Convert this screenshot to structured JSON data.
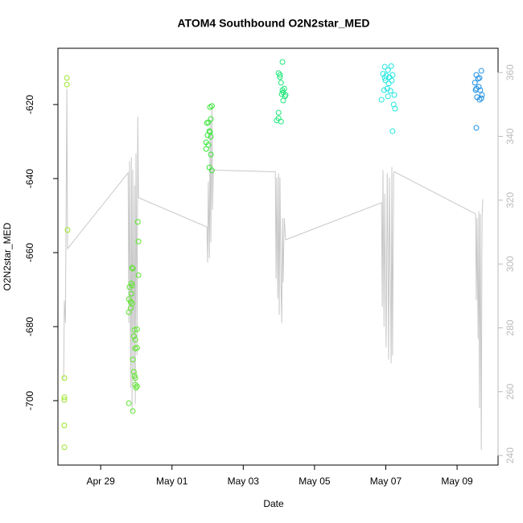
{
  "chart_data": {
    "type": "scatter",
    "title": "ATOM4 Southbound O2N2star_MED",
    "xlabel": "Date",
    "ylabel": "O2N2star_MED",
    "xlim": [
      117.8,
      130.15
    ],
    "xticks": [
      {
        "value": 119,
        "label": "Apr 29"
      },
      {
        "value": 121,
        "label": "May 01"
      },
      {
        "value": 123,
        "label": "May 03"
      },
      {
        "value": 125,
        "label": "May 05"
      },
      {
        "value": 127,
        "label": "May 07"
      },
      {
        "value": 129,
        "label": "May 09"
      }
    ],
    "ylim": [
      -717.4,
      -604.8
    ],
    "yticks": [
      -700,
      -680,
      -660,
      -640,
      -620
    ],
    "y2lim": [
      237.0,
      367.6
    ],
    "y2ticks": [
      240,
      260,
      280,
      300,
      320,
      340,
      360
    ],
    "series": [
      {
        "color": "#9ae62a",
        "x": [
          118.05,
          118.05,
          118.07,
          117.98,
          117.98,
          117.98,
          117.98,
          117.98
        ],
        "values": [
          -612.8,
          -614.6,
          -653.9,
          -693.9,
          -699.8,
          -699.1,
          -706.7,
          -712.6
        ]
      },
      {
        "color": "#5ce62a",
        "x": [
          119.79,
          119.81,
          119.84,
          119.86,
          119.88,
          119.79,
          119.84,
          119.86,
          119.88,
          119.9,
          119.88,
          119.95,
          119.97,
          119.93,
          120.02,
          119.97,
          120.02,
          119.9,
          119.95,
          119.93,
          119.97,
          120.02,
          119.97,
          119.99,
          119.79,
          119.9,
          120.04,
          120.06,
          120.06
        ],
        "values": [
          -672.6,
          -669.3,
          -673.3,
          -668.3,
          -668.9,
          -676.1,
          -675.0,
          -671.1,
          -664.1,
          -664.3,
          -673.7,
          -680.9,
          -683.5,
          -682.6,
          -680.7,
          -685.9,
          -685.7,
          -688.9,
          -693.3,
          -692.2,
          -693.9,
          -696.1,
          -695.7,
          -696.5,
          -700.7,
          -702.8,
          -651.7,
          -657.0,
          -666.1
        ]
      },
      {
        "color": "#36e636",
        "x": [
          121.96,
          122.0,
          122.02,
          122.07,
          122.12,
          122.09,
          122.05,
          121.96,
          122.02,
          122.07,
          122.09,
          122.05,
          122.12,
          121.98,
          122.09
        ],
        "values": [
          -632.0,
          -628.3,
          -624.8,
          -620.7,
          -620.4,
          -623.9,
          -627.2,
          -630.2,
          -630.9,
          -627.4,
          -633.5,
          -637.0,
          -637.8,
          -625.0,
          -628.7
        ]
      },
      {
        "color": "#1fe67a",
        "x": [
          124.1,
          123.99,
          124.03,
          124.06,
          124.15,
          124.1,
          124.08,
          124.17,
          124.12,
          123.99,
          123.94,
          124.06,
          123.99,
          124.12,
          124.03,
          124.19
        ],
        "values": [
          -608.5,
          -611.5,
          -612.6,
          -614.1,
          -615.7,
          -616.1,
          -617.2,
          -617.8,
          -618.9,
          -622.2,
          -624.3,
          -624.6,
          -623.7,
          -616.7,
          -612.0,
          -617.4
        ]
      },
      {
        "color": "#1fe6e0",
        "x": [
          126.97,
          127.06,
          127.15,
          126.92,
          127.01,
          127.1,
          127.19,
          126.99,
          127.08,
          127.17,
          127.04,
          126.95,
          127.13,
          127.24,
          126.88,
          127.22,
          127.26,
          127.19,
          126.97,
          127.06
        ],
        "values": [
          -609.8,
          -610.7,
          -609.6,
          -611.7,
          -612.2,
          -612.6,
          -612.0,
          -613.5,
          -614.3,
          -613.5,
          -615.7,
          -616.1,
          -616.3,
          -617.4,
          -618.7,
          -620.0,
          -621.1,
          -627.2,
          -612.8,
          -617.8
        ]
      },
      {
        "color": "#1f8fe6",
        "x": [
          129.68,
          129.54,
          129.63,
          129.59,
          129.5,
          129.61,
          129.54,
          129.65,
          129.7,
          129.56,
          129.63,
          129.52,
          129.54,
          129.68
        ],
        "values": [
          -610.9,
          -612.0,
          -612.8,
          -613.0,
          -614.1,
          -615.2,
          -615.7,
          -616.1,
          -617.4,
          -618.0,
          -618.7,
          -616.1,
          -626.3,
          -618.3
        ]
      },
      {
        "type": "line",
        "axis": "y2",
        "color": "#c8c8c8",
        "x": [
          117.96,
          117.98,
          118.01,
          118.03,
          118.05,
          118.07,
          119.77,
          119.79,
          119.81,
          119.84,
          119.86,
          119.88,
          119.9,
          119.93,
          119.95,
          119.97,
          119.99,
          120.02,
          120.04,
          120.06,
          121.98,
          122.0,
          122.02,
          122.05,
          122.07,
          122.09,
          122.12,
          122.14,
          122.16,
          122.23,
          123.9,
          123.92,
          123.94,
          123.97,
          123.99,
          124.01,
          124.03,
          124.06,
          124.08,
          124.1,
          124.12,
          124.15,
          124.19,
          126.88,
          126.9,
          126.92,
          126.95,
          126.97,
          127.01,
          127.04,
          127.08,
          127.1,
          127.15,
          127.17,
          127.19,
          127.22,
          127.24,
          129.52,
          129.54,
          129.56,
          129.59,
          129.61,
          129.63,
          129.65,
          129.68,
          129.7,
          129.72
        ],
        "values": [
          263.8,
          288.6,
          281.5,
          317.0,
          354.9,
          304.8,
          328.6,
          281.5,
          332.2,
          261.3,
          333.4,
          253.7,
          329.6,
          263.8,
          324.6,
          256.2,
          334.7,
          271.4,
          346.1,
          320.8,
          311.6,
          300.5,
          325.8,
          301.8,
          344.8,
          306.8,
          349.9,
          317.0,
          329.6,
          329.4,
          328.9,
          295.4,
          327.1,
          289.1,
          328.4,
          284.1,
          327.1,
          292.9,
          281.5,
          314.4,
          294.2,
          314.4,
          307.6,
          319.2,
          286.6,
          329.4,
          280.3,
          322.0,
          273.9,
          328.4,
          270.1,
          327.1,
          268.9,
          330.4,
          271.4,
          328.4,
          328.9,
          315.7,
          288.6,
          314.4,
          276.5,
          316.5,
          254.9,
          315.7,
          241.8,
          314.4,
          320.3
        ]
      }
    ]
  }
}
